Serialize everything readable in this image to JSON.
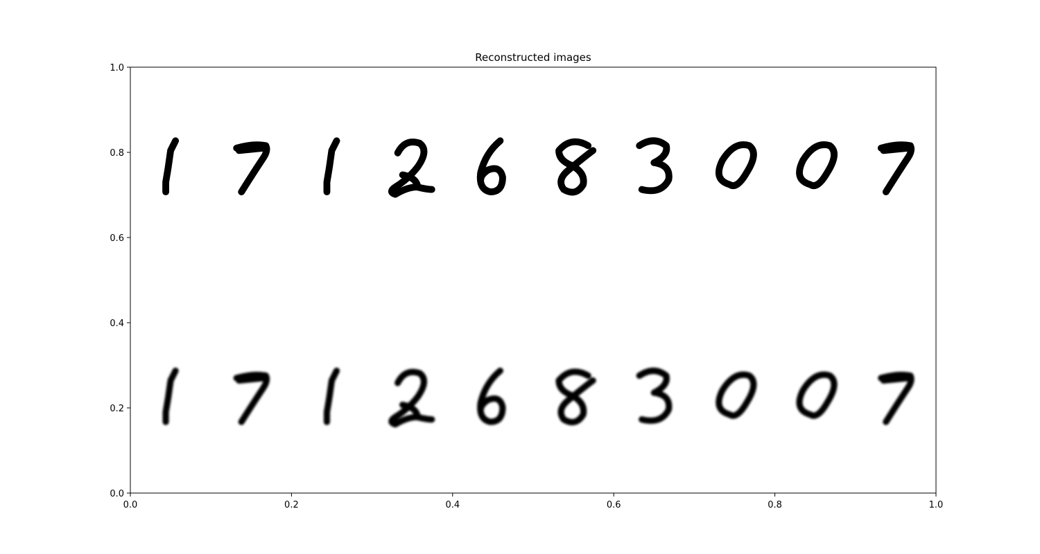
{
  "chart_data": {
    "type": "image-grid",
    "title": "Reconstructed images",
    "xlabel": "",
    "ylabel": "",
    "xlim": [
      0,
      1
    ],
    "ylim": [
      0,
      1
    ],
    "xticks": [
      0.0,
      0.2,
      0.4,
      0.6,
      0.8,
      1.0
    ],
    "yticks": [
      0.0,
      0.2,
      0.4,
      0.6,
      0.8,
      1.0
    ],
    "xtick_labels": [
      "0.0",
      "0.2",
      "0.4",
      "0.6",
      "0.8",
      "1.0"
    ],
    "ytick_labels": [
      "0.0",
      "0.2",
      "0.4",
      "0.6",
      "0.8",
      "1.0"
    ],
    "grid": false,
    "rows": [
      {
        "role": "original",
        "y_range": [
          0.69,
          0.85
        ],
        "style": "sharp",
        "digits": [
          "1",
          "7",
          "1",
          "2",
          "6",
          "8",
          "3",
          "0",
          "0",
          "7"
        ]
      },
      {
        "role": "reconstruction",
        "y_range": [
          0.15,
          0.31
        ],
        "style": "blurred",
        "digits": [
          "1",
          "7",
          "1",
          "2",
          "6",
          "8",
          "3",
          "0",
          "0",
          "7"
        ]
      }
    ],
    "colors": {
      "ink": "#000000",
      "background": "#ffffff"
    }
  }
}
